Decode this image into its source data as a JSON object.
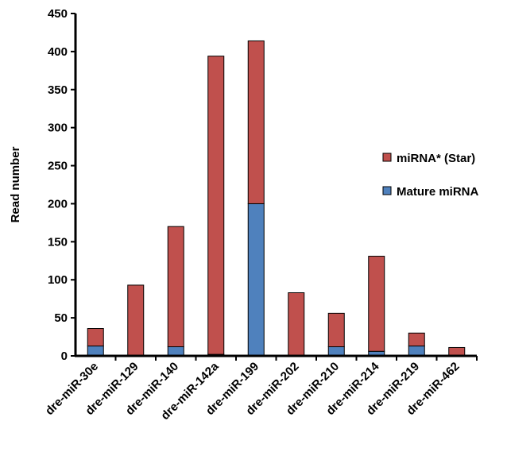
{
  "chart_data": {
    "type": "bar",
    "stacked": true,
    "ylabel": "Read number",
    "xlabel": "",
    "ylim": [
      0,
      450
    ],
    "yticks": [
      0,
      50,
      100,
      150,
      200,
      250,
      300,
      350,
      400,
      450
    ],
    "grid": false,
    "legend_position": "right",
    "categories": [
      "dre-miR-30e",
      "dre-miR-129",
      "dre-miR-140",
      "dre-miR-142a",
      "dre-miR-199",
      "dre-miR-202",
      "dre-miR-210",
      "dre-miR-214",
      "dre-miR-219",
      "dre-miR-462"
    ],
    "series": [
      {
        "name": "Mature miRNA",
        "color": "#4f81bd",
        "values": [
          13,
          0,
          12,
          2,
          200,
          0,
          12,
          6,
          13,
          1
        ]
      },
      {
        "name": "miRNA* (Star)",
        "color": "#c0504d",
        "values": [
          23,
          93,
          158,
          392,
          214,
          83,
          44,
          125,
          17,
          10
        ]
      }
    ],
    "legend_order": [
      "miRNA* (Star)",
      "Mature miRNA"
    ]
  }
}
